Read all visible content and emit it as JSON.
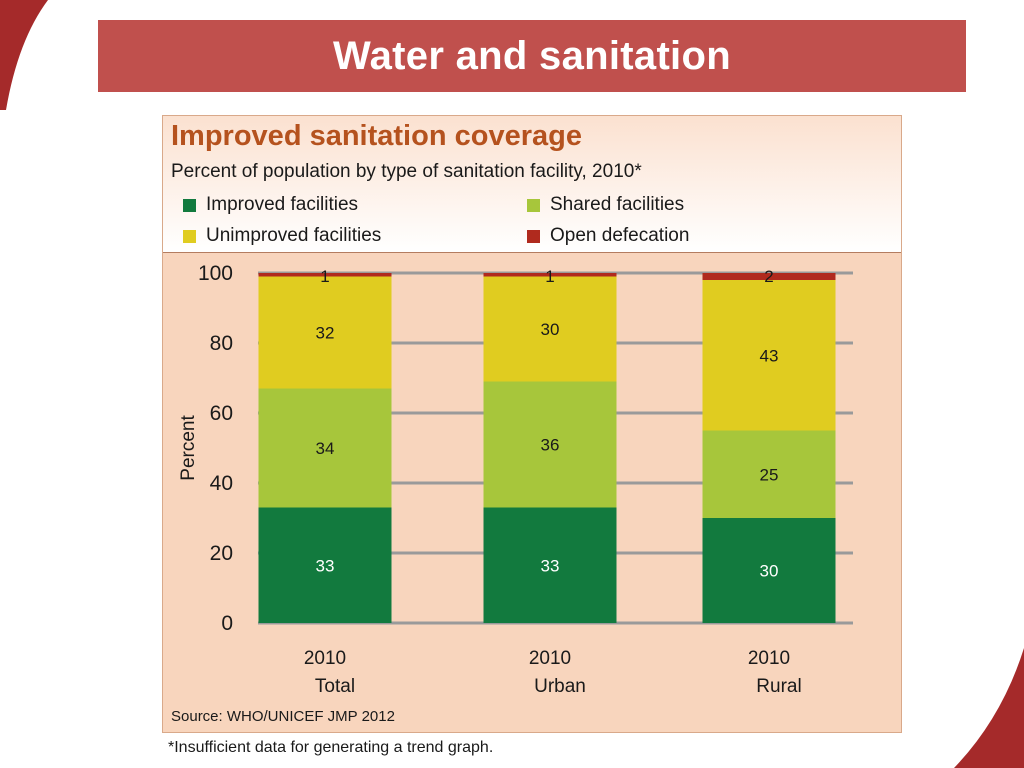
{
  "slide": {
    "title": "Water and sanitation",
    "footnote": "*Insufficient data for generating a trend graph."
  },
  "colors": {
    "banner": "#c0504d",
    "chart_title": "#b5521e",
    "improved": "#127a3e",
    "shared": "#a7c63b",
    "unimproved": "#e0cc20",
    "open_defecation": "#b02a1e"
  },
  "chart_data": {
    "type": "bar",
    "stacked": true,
    "title": "Improved sanitation coverage",
    "subtitle": "Percent of population by type of sanitation facility, 2010*",
    "ylabel": "Percent",
    "xlabel": "",
    "ylim": [
      0,
      100
    ],
    "yticks": [
      0,
      20,
      40,
      60,
      80,
      100
    ],
    "grid": true,
    "categories": [
      {
        "year": "2010",
        "name": "Total"
      },
      {
        "year": "2010",
        "name": "Urban"
      },
      {
        "year": "2010",
        "name": "Rural"
      }
    ],
    "series": [
      {
        "name": "Improved facilities",
        "key": "improved",
        "values": [
          33,
          33,
          30
        ]
      },
      {
        "name": "Shared facilities",
        "key": "shared",
        "values": [
          34,
          36,
          25
        ]
      },
      {
        "name": "Unimproved facilities",
        "key": "unimproved",
        "values": [
          32,
          30,
          43
        ]
      },
      {
        "name": "Open defecation",
        "key": "open_defecation",
        "values": [
          1,
          1,
          2
        ]
      }
    ],
    "legend": [
      "Improved facilities",
      "Shared facilities",
      "Unimproved facilities",
      "Open defecation"
    ],
    "source": "Source:  WHO/UNICEF JMP 2012"
  }
}
